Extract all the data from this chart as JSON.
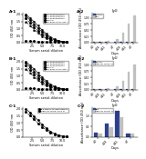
{
  "background": "#ffffff",
  "line_chart_xlabel": "Serum serial dilution",
  "line_chart_ylabel": "OD 450 nm",
  "bar_chart_xlabel": "Days",
  "bar_chart_ylabel": "Absorbance (OD 450 nm)",
  "bar_chart_title": "IgG",
  "A1_lines": [
    {
      "label": "T1 immunization",
      "color": "black",
      "style": "-",
      "marker": "o",
      "values": [
        1.9,
        1.6,
        1.3,
        1.0,
        0.75,
        0.5,
        0.3,
        0.18,
        0.1,
        0.05,
        0.02
      ]
    },
    {
      "label": "T2 immunization",
      "color": "black",
      "style": "--",
      "marker": "s",
      "values": [
        1.7,
        1.4,
        1.1,
        0.82,
        0.58,
        0.38,
        0.22,
        0.13,
        0.07,
        0.03,
        0.01
      ]
    },
    {
      "label": "T3 immunization",
      "color": "black",
      "style": "-.",
      "marker": "^",
      "values": [
        1.5,
        1.2,
        0.92,
        0.68,
        0.46,
        0.28,
        0.16,
        0.09,
        0.04,
        0.02,
        0.01
      ]
    },
    {
      "label": "Control",
      "color": "black",
      "style": ":",
      "marker": "D",
      "values": [
        0.12,
        0.1,
        0.09,
        0.08,
        0.07,
        0.06,
        0.05,
        0.05,
        0.04,
        0.04,
        0.03
      ]
    },
    {
      "label": "45 days after last T",
      "color": "black",
      "style": "-",
      "marker": "v",
      "values": [
        2.0,
        1.75,
        1.48,
        1.18,
        0.88,
        0.62,
        0.4,
        0.24,
        0.13,
        0.07,
        0.03
      ]
    }
  ],
  "B1_lines": [
    {
      "label": "T1 immunization",
      "color": "black",
      "style": "-",
      "marker": "o",
      "values": [
        1.9,
        1.6,
        1.3,
        1.0,
        0.75,
        0.5,
        0.3,
        0.18,
        0.1,
        0.05,
        0.02
      ]
    },
    {
      "label": "T2 immunization",
      "color": "black",
      "style": "--",
      "marker": "s",
      "values": [
        1.7,
        1.4,
        1.1,
        0.82,
        0.58,
        0.38,
        0.22,
        0.13,
        0.07,
        0.03,
        0.01
      ]
    },
    {
      "label": "T3 immunization",
      "color": "black",
      "style": "-.",
      "marker": "^",
      "values": [
        1.5,
        1.2,
        0.92,
        0.68,
        0.46,
        0.28,
        0.16,
        0.09,
        0.04,
        0.02,
        0.01
      ]
    },
    {
      "label": "Control",
      "color": "black",
      "style": ":",
      "marker": "D",
      "values": [
        0.12,
        0.1,
        0.09,
        0.08,
        0.07,
        0.06,
        0.05,
        0.05,
        0.04,
        0.04,
        0.03
      ]
    },
    {
      "label": "45 days after last T",
      "color": "black",
      "style": "-",
      "marker": "v",
      "values": [
        2.0,
        1.75,
        1.48,
        1.18,
        0.88,
        0.62,
        0.4,
        0.24,
        0.13,
        0.07,
        0.03
      ]
    }
  ],
  "C1_lines": [
    {
      "label": "T3 single vaccine RBD N",
      "color": "black",
      "style": "-",
      "marker": "o",
      "values": [
        2.0,
        1.75,
        1.48,
        1.18,
        0.88,
        0.62,
        0.4,
        0.24,
        0.13,
        0.07,
        0.03
      ]
    },
    {
      "label": "RBD+N comb. 45 d N",
      "color": "black",
      "style": "--",
      "marker": "s",
      "values": [
        1.8,
        1.52,
        1.25,
        0.98,
        0.72,
        0.48,
        0.3,
        0.17,
        0.09,
        0.04,
        0.02
      ]
    }
  ],
  "bar_days_AB_labels": [
    "d.0",
    "d.28",
    "d.42",
    "d.7",
    "d.28",
    "d.42",
    "d.7"
  ],
  "barA_ctrl": [
    0.04,
    0.04,
    0.04,
    0.04,
    0.04,
    0.04,
    0.04
  ],
  "barA_vacc": [
    0.04,
    0.04,
    0.06,
    0.15,
    0.38,
    0.78,
    1.08
  ],
  "barB_ctrl": [
    0.04,
    0.04,
    0.04,
    0.04,
    0.04,
    0.04,
    0.04
  ],
  "barB_vacc": [
    0.04,
    0.04,
    0.06,
    0.14,
    0.35,
    0.72,
    1.02
  ],
  "barC_days_labels": [
    "d.0",
    "d.28",
    "d.42",
    "d.7"
  ],
  "barC_RBD": [
    0.22,
    0.65,
    1.25,
    0.18
  ],
  "barC_RBDN": [
    0.14,
    0.45,
    0.95,
    0.14
  ],
  "col_ctrl": "#2b3f8c",
  "col_vacc_A": "#c0c0c0",
  "col_vacc_B": "#c0c0c0",
  "col_RBD_C": "#2b3f8c",
  "col_RBDN_C": "#c0c0c0",
  "legend_A_labels": [
    "Control",
    "RBD"
  ],
  "legend_B_labels": [
    "Control",
    "RBD+N comb. N"
  ],
  "legend_C_labels": [
    "RBD",
    "RBD+N comb. N"
  ],
  "bar_ylim_AB": 1.2,
  "bar_ylim_C": 1.4,
  "line_ylim": 2.1
}
